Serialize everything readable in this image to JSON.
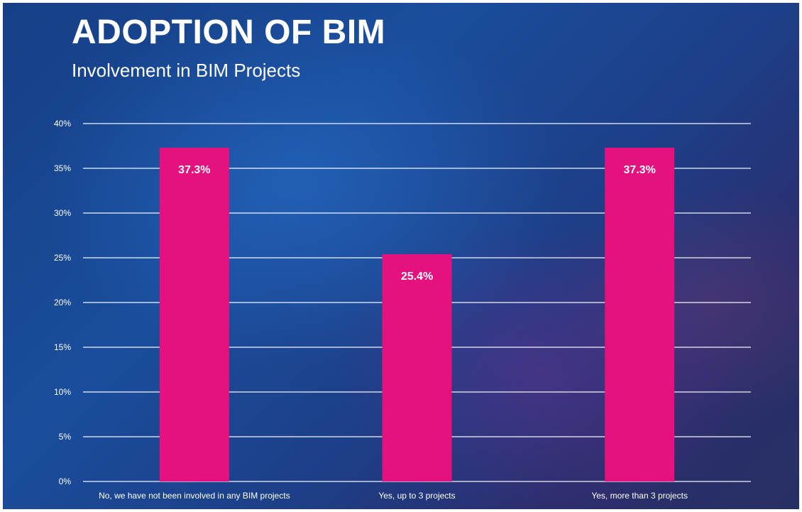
{
  "chart_data": {
    "type": "bar",
    "title": "ADOPTION OF BIM",
    "subtitle": "Involvement in BIM Projects",
    "categories": [
      "No, we have not been involved in any BIM projects",
      "Yes, up to 3 projects",
      "Yes, more than 3 projects"
    ],
    "values": [
      37.3,
      25.4,
      37.3
    ],
    "data_labels": [
      "37.3%",
      "25.4%",
      "37.3%"
    ],
    "ylim": [
      0,
      40
    ],
    "yticks": [
      0,
      5,
      10,
      15,
      20,
      25,
      30,
      35,
      40
    ],
    "ytick_labels": [
      "0%",
      "5%",
      "10%",
      "15%",
      "20%",
      "25%",
      "30%",
      "35%",
      "40%"
    ],
    "grid": true,
    "legend": "none",
    "colors": {
      "bar": "#e5117f",
      "background": "#1a4d9c",
      "text": "#ffffff"
    }
  }
}
